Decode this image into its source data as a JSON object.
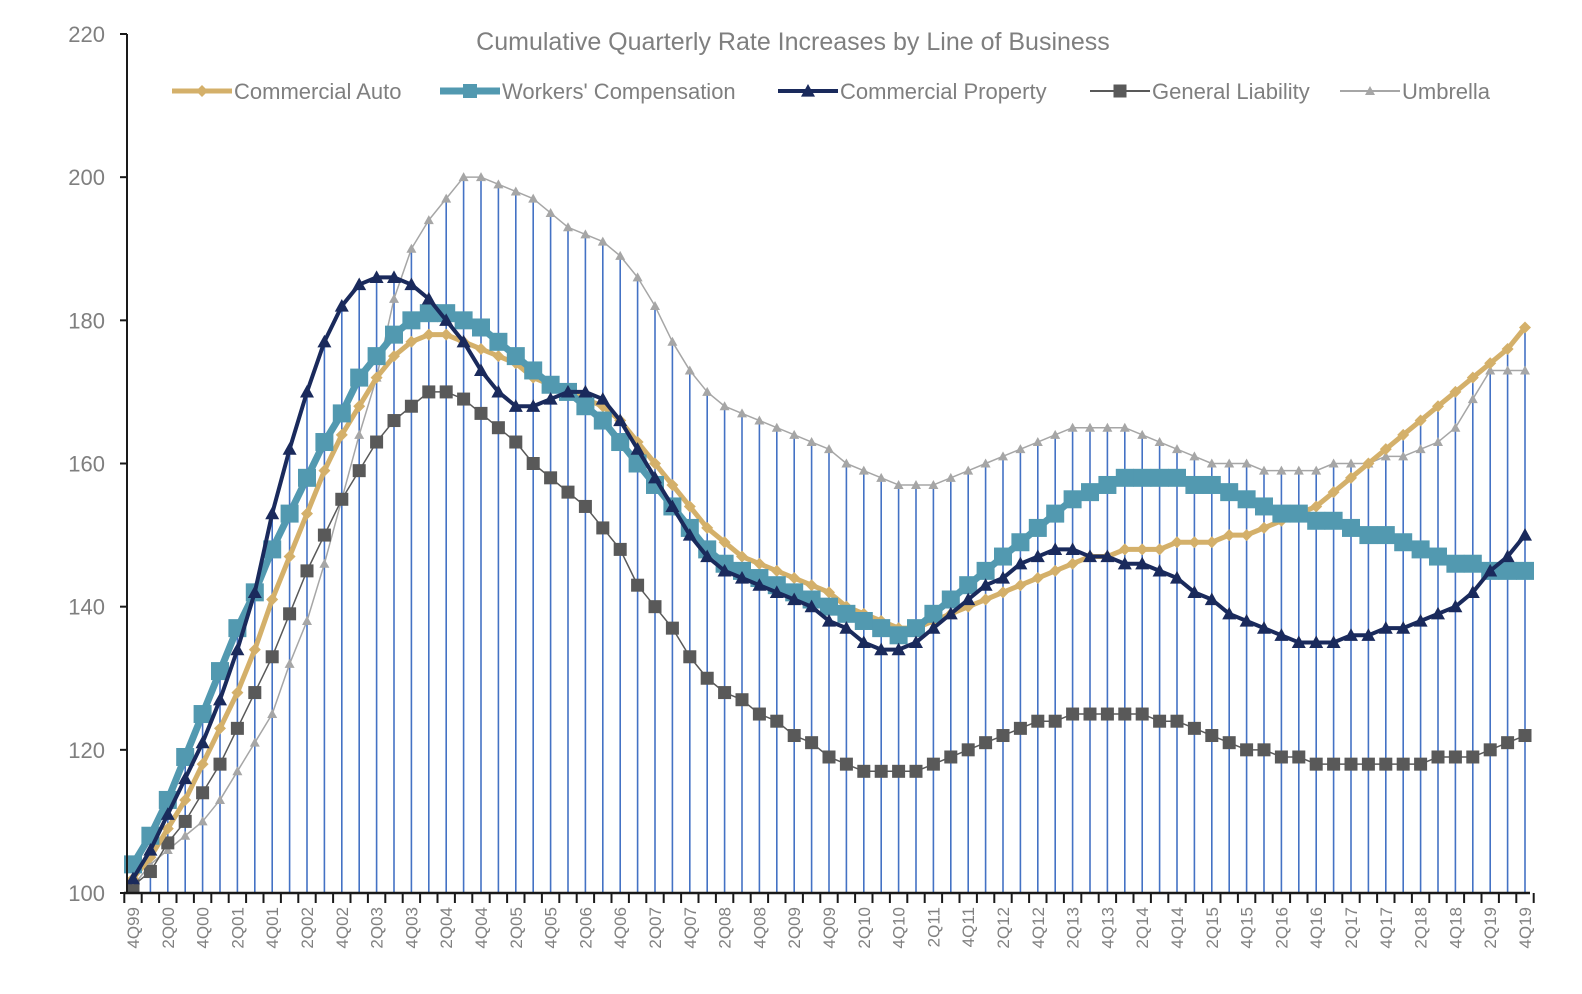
{
  "chart_data": {
    "type": "line",
    "title": "Cumulative Quarterly Rate Increases by Line of Business",
    "xlabel": "",
    "ylabel": "",
    "ylim": [
      100,
      220
    ],
    "yticks": [
      100,
      120,
      140,
      160,
      180,
      200,
      220
    ],
    "grid": false,
    "legend_position": "top",
    "high_low_lines": true,
    "x": [
      "4Q99",
      "1Q00",
      "2Q00",
      "3Q00",
      "4Q00",
      "1Q01",
      "2Q01",
      "3Q01",
      "4Q01",
      "1Q02",
      "2Q02",
      "3Q02",
      "4Q02",
      "1Q03",
      "2Q03",
      "3Q03",
      "4Q03",
      "1Q04",
      "2Q04",
      "3Q04",
      "4Q04",
      "1Q05",
      "2Q05",
      "3Q05",
      "4Q05",
      "1Q06",
      "2Q06",
      "3Q06",
      "4Q06",
      "1Q07",
      "2Q07",
      "3Q07",
      "4Q07",
      "1Q08",
      "2Q08",
      "3Q08",
      "4Q08",
      "1Q09",
      "2Q09",
      "3Q09",
      "4Q09",
      "1Q10",
      "2Q10",
      "3Q10",
      "4Q10",
      "1Q11",
      "2Q11",
      "3Q11",
      "4Q11",
      "1Q12",
      "2Q12",
      "3Q12",
      "4Q12",
      "1Q13",
      "2Q13",
      "3Q13",
      "4Q13",
      "1Q14",
      "2Q14",
      "3Q14",
      "4Q14",
      "1Q15",
      "2Q15",
      "3Q15",
      "4Q15",
      "1Q16",
      "2Q16",
      "3Q16",
      "4Q16",
      "1Q17",
      "2Q17",
      "3Q17",
      "4Q17",
      "1Q18",
      "2Q18",
      "3Q18",
      "4Q18",
      "1Q19",
      "2Q19",
      "3Q19",
      "4Q19"
    ],
    "xtick_labels": [
      "4Q99",
      "2Q00",
      "4Q00",
      "2Q01",
      "4Q01",
      "2Q02",
      "4Q02",
      "2Q03",
      "4Q03",
      "2Q04",
      "4Q04",
      "2Q05",
      "4Q05",
      "2Q06",
      "4Q06",
      "2Q07",
      "4Q07",
      "2Q08",
      "4Q08",
      "2Q09",
      "4Q09",
      "2Q10",
      "4Q10",
      "2Q11",
      "4Q11",
      "2Q12",
      "4Q12",
      "2Q13",
      "4Q13",
      "2Q14",
      "4Q14",
      "2Q15",
      "4Q15",
      "2Q16",
      "4Q16",
      "2Q17",
      "4Q17",
      "2Q18",
      "4Q18",
      "2Q19",
      "4Q19"
    ],
    "series": [
      {
        "name": "Commercial Auto",
        "color": "#d4b06a",
        "marker": "diamond",
        "values": [
          102,
          105,
          109,
          113,
          118,
          123,
          128,
          134,
          141,
          147,
          153,
          159,
          164,
          168,
          172,
          175,
          177,
          178,
          178,
          177,
          176,
          175,
          174,
          172,
          171,
          170,
          169,
          168,
          166,
          163,
          160,
          157,
          154,
          151,
          149,
          147,
          146,
          145,
          144,
          143,
          142,
          140,
          139,
          138,
          137,
          137,
          138,
          139,
          140,
          141,
          142,
          143,
          144,
          145,
          146,
          147,
          147,
          148,
          148,
          148,
          149,
          149,
          149,
          150,
          150,
          151,
          152,
          153,
          154,
          156,
          158,
          160,
          162,
          164,
          166,
          168,
          170,
          172,
          174,
          176,
          179
        ]
      },
      {
        "name": "Workers' Compensation",
        "color": "#5299b0",
        "marker": "square",
        "values": [
          104,
          108,
          113,
          119,
          125,
          131,
          137,
          142,
          148,
          153,
          158,
          163,
          167,
          172,
          175,
          178,
          180,
          181,
          181,
          180,
          179,
          177,
          175,
          173,
          171,
          170,
          168,
          166,
          163,
          160,
          157,
          154,
          151,
          148,
          146,
          145,
          144,
          143,
          142,
          141,
          140,
          139,
          138,
          137,
          136,
          137,
          139,
          141,
          143,
          145,
          147,
          149,
          151,
          153,
          155,
          156,
          157,
          158,
          158,
          158,
          158,
          157,
          157,
          156,
          155,
          154,
          153,
          153,
          152,
          152,
          151,
          150,
          150,
          149,
          148,
          147,
          146,
          146,
          145,
          145,
          145
        ]
      },
      {
        "name": "Commercial Property",
        "color": "#1a2a5c",
        "marker": "triangle",
        "values": [
          102,
          106,
          111,
          116,
          121,
          127,
          134,
          142,
          153,
          162,
          170,
          177,
          182,
          185,
          186,
          186,
          185,
          183,
          180,
          177,
          173,
          170,
          168,
          168,
          169,
          170,
          170,
          169,
          166,
          162,
          158,
          154,
          150,
          147,
          145,
          144,
          143,
          142,
          141,
          140,
          138,
          137,
          135,
          134,
          134,
          135,
          137,
          139,
          141,
          143,
          144,
          146,
          147,
          148,
          148,
          147,
          147,
          146,
          146,
          145,
          144,
          142,
          141,
          139,
          138,
          137,
          136,
          135,
          135,
          135,
          136,
          136,
          137,
          137,
          138,
          139,
          140,
          142,
          145,
          147,
          150
        ]
      },
      {
        "name": "General Liability",
        "color": "#595959",
        "marker": "square",
        "values": [
          101,
          103,
          107,
          110,
          114,
          118,
          123,
          128,
          133,
          139,
          145,
          150,
          155,
          159,
          163,
          166,
          168,
          170,
          170,
          169,
          167,
          165,
          163,
          160,
          158,
          156,
          154,
          151,
          148,
          143,
          140,
          137,
          133,
          130,
          128,
          127,
          125,
          124,
          122,
          121,
          119,
          118,
          117,
          117,
          117,
          117,
          118,
          119,
          120,
          121,
          122,
          123,
          124,
          124,
          125,
          125,
          125,
          125,
          125,
          124,
          124,
          123,
          122,
          121,
          120,
          120,
          119,
          119,
          118,
          118,
          118,
          118,
          118,
          118,
          118,
          119,
          119,
          119,
          120,
          121,
          122
        ]
      },
      {
        "name": "Umbrella",
        "color": "#a6a6a6",
        "marker": "triangle",
        "values": [
          101,
          104,
          106,
          108,
          110,
          113,
          117,
          121,
          125,
          132,
          138,
          146,
          155,
          164,
          172,
          183,
          190,
          194,
          197,
          200,
          200,
          199,
          198,
          197,
          195,
          193,
          192,
          191,
          189,
          186,
          182,
          177,
          173,
          170,
          168,
          167,
          166,
          165,
          164,
          163,
          162,
          160,
          159,
          158,
          157,
          157,
          157,
          158,
          159,
          160,
          161,
          162,
          163,
          164,
          165,
          165,
          165,
          165,
          164,
          163,
          162,
          161,
          160,
          160,
          160,
          159,
          159,
          159,
          159,
          160,
          160,
          160,
          161,
          161,
          162,
          163,
          165,
          169,
          173,
          173,
          173
        ]
      }
    ],
    "high_low_line_color": "#4472c4"
  }
}
